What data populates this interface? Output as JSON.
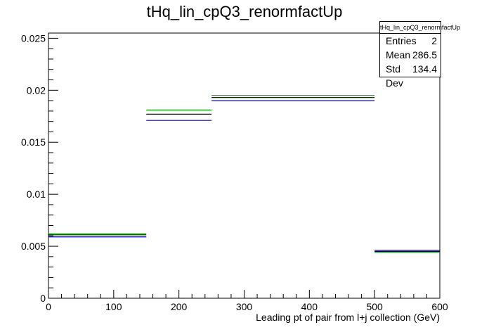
{
  "title": "tHq_lin_cpQ3_renormfactUp",
  "stats": {
    "name": "tHq_lin_cpQ3_renormfactUp",
    "entries_label": "Entries",
    "entries": "2",
    "mean_label": "Mean",
    "mean": "286.5",
    "stddev_label": "Std Dev",
    "stddev": "134.4"
  },
  "chart_data": {
    "type": "bar",
    "xlabel": "Leading pt of pair from l+j collection (GeV)",
    "ylabel": "",
    "xlim": [
      0,
      600
    ],
    "ylim": [
      0,
      0.0255
    ],
    "x_ticks": [
      0,
      100,
      200,
      300,
      400,
      500,
      600
    ],
    "x_tick_labels": [
      "0",
      "100",
      "200",
      "300",
      "400",
      "500",
      "600"
    ],
    "y_ticks": [
      0,
      0.005,
      0.01,
      0.015,
      0.02,
      0.025
    ],
    "y_tick_labels": [
      "0",
      "0.005",
      "0.01",
      "0.015",
      "0.02",
      "0.025"
    ],
    "bin_edges": [
      0,
      150,
      250,
      500,
      600
    ],
    "series": [
      {
        "color": "#00aa00",
        "values": [
          0.0062,
          0.0181,
          0.0195,
          0.0044
        ]
      },
      {
        "color": "#000000",
        "values": [
          0.0061,
          0.0177,
          0.0193,
          0.0045
        ]
      },
      {
        "color": "#0000cc",
        "values": [
          0.0059,
          0.0171,
          0.019,
          0.0046
        ]
      }
    ],
    "grid": false,
    "legend": "top-right"
  }
}
